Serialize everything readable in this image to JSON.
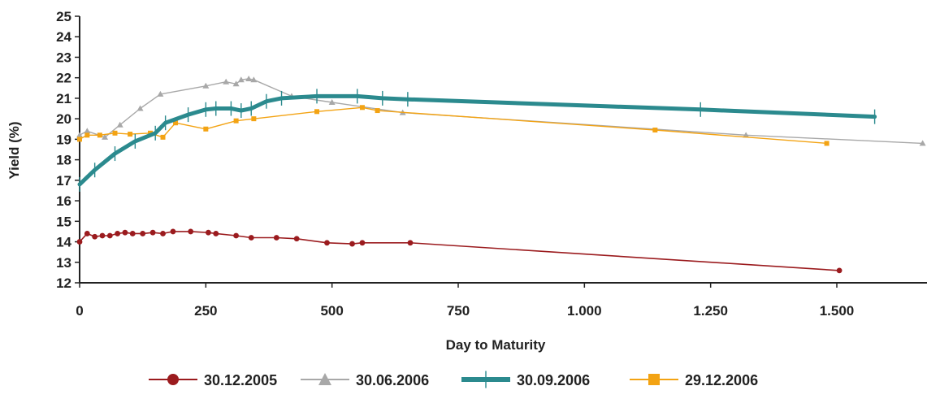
{
  "chart_data": {
    "type": "line",
    "xlabel": "Day to Maturity",
    "ylabel": "Yield  (%)",
    "xlim": [
      0,
      1700
    ],
    "ylim": [
      12,
      25
    ],
    "x_ticks": [
      {
        "value": 0,
        "label": "0"
      },
      {
        "value": 250,
        "label": "250"
      },
      {
        "value": 500,
        "label": "500"
      },
      {
        "value": 750,
        "label": "750"
      },
      {
        "value": 1000,
        "label": "1.000"
      },
      {
        "value": 1250,
        "label": "1.250"
      },
      {
        "value": 1500,
        "label": "1.500"
      }
    ],
    "y_ticks": [
      12,
      13,
      14,
      15,
      16,
      17,
      18,
      19,
      20,
      21,
      22,
      23,
      24,
      25
    ],
    "grid": false,
    "legend_position": "bottom",
    "series": [
      {
        "name": "30.12.2005",
        "color": "#9b1b1e",
        "marker": "circle",
        "width": 1.6,
        "points": [
          [
            0,
            14.0
          ],
          [
            15,
            14.4
          ],
          [
            30,
            14.25
          ],
          [
            45,
            14.3
          ],
          [
            60,
            14.3
          ],
          [
            75,
            14.4
          ],
          [
            90,
            14.45
          ],
          [
            105,
            14.4
          ],
          [
            125,
            14.4
          ],
          [
            145,
            14.45
          ],
          [
            165,
            14.4
          ],
          [
            185,
            14.5
          ],
          [
            220,
            14.5
          ],
          [
            255,
            14.45
          ],
          [
            270,
            14.4
          ],
          [
            310,
            14.3
          ],
          [
            340,
            14.2
          ],
          [
            390,
            14.2
          ],
          [
            430,
            14.15
          ],
          [
            490,
            13.95
          ],
          [
            540,
            13.9
          ],
          [
            560,
            13.95
          ],
          [
            655,
            13.95
          ],
          [
            1505,
            12.6
          ]
        ]
      },
      {
        "name": "30.06.2006",
        "color": "#a8a8a8",
        "marker": "triangle",
        "width": 1.4,
        "points": [
          [
            0,
            19.2
          ],
          [
            15,
            19.4
          ],
          [
            50,
            19.1
          ],
          [
            80,
            19.7
          ],
          [
            120,
            20.5
          ],
          [
            160,
            21.2
          ],
          [
            250,
            21.6
          ],
          [
            290,
            21.8
          ],
          [
            310,
            21.7
          ],
          [
            320,
            21.9
          ],
          [
            335,
            21.95
          ],
          [
            345,
            21.9
          ],
          [
            420,
            21.1
          ],
          [
            500,
            20.8
          ],
          [
            640,
            20.3
          ],
          [
            1320,
            19.2
          ],
          [
            1670,
            18.8
          ]
        ]
      },
      {
        "name": "30.09.2006",
        "color": "#2b8a8e",
        "marker": "cross",
        "width": 5,
        "points": [
          [
            0,
            16.8
          ],
          [
            30,
            17.5
          ],
          [
            70,
            18.3
          ],
          [
            110,
            18.9
          ],
          [
            150,
            19.3
          ],
          [
            170,
            19.8
          ],
          [
            215,
            20.2
          ],
          [
            250,
            20.45
          ],
          [
            270,
            20.5
          ],
          [
            300,
            20.5
          ],
          [
            320,
            20.4
          ],
          [
            340,
            20.5
          ],
          [
            370,
            20.85
          ],
          [
            400,
            21.0
          ],
          [
            470,
            21.1
          ],
          [
            550,
            21.1
          ],
          [
            600,
            21.0
          ],
          [
            650,
            20.95
          ],
          [
            1230,
            20.45
          ],
          [
            1575,
            20.1
          ]
        ]
      },
      {
        "name": "29.12.2006",
        "color": "#f3a313",
        "marker": "square",
        "width": 1.4,
        "points": [
          [
            0,
            19.0
          ],
          [
            15,
            19.2
          ],
          [
            40,
            19.2
          ],
          [
            70,
            19.3
          ],
          [
            100,
            19.25
          ],
          [
            140,
            19.3
          ],
          [
            165,
            19.1
          ],
          [
            190,
            19.8
          ],
          [
            250,
            19.5
          ],
          [
            310,
            19.9
          ],
          [
            345,
            20.0
          ],
          [
            470,
            20.35
          ],
          [
            560,
            20.55
          ],
          [
            590,
            20.4
          ],
          [
            1140,
            19.45
          ],
          [
            1480,
            18.8
          ]
        ]
      }
    ]
  }
}
